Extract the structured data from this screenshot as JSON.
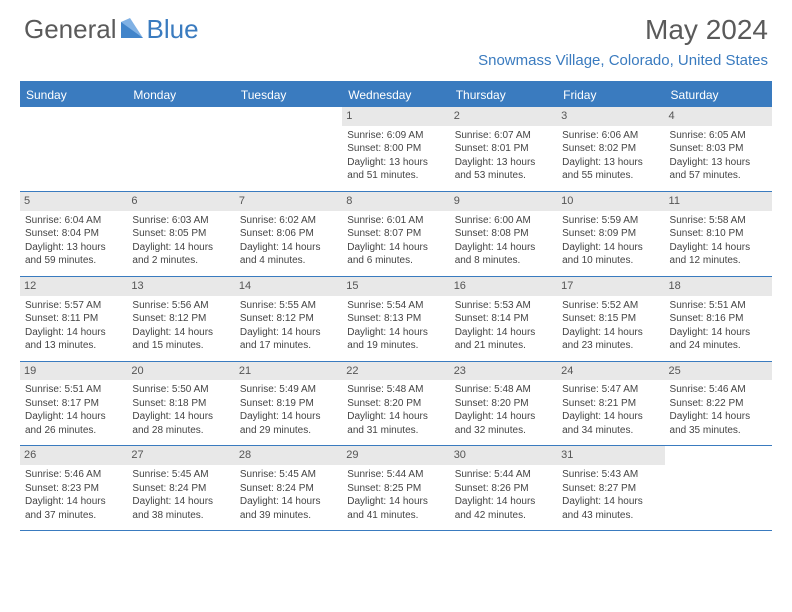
{
  "logo": {
    "text1": "General",
    "text2": "Blue"
  },
  "title": "May 2024",
  "location": "Snowmass Village, Colorado, United States",
  "colors": {
    "primary": "#3a7bbf",
    "header_text": "#5a5a5a",
    "daynum_bg": "#e8e8e8",
    "body_text": "#444444"
  },
  "weekdays": [
    "Sunday",
    "Monday",
    "Tuesday",
    "Wednesday",
    "Thursday",
    "Friday",
    "Saturday"
  ],
  "weeks": [
    [
      {
        "day": "",
        "sunrise": "",
        "sunset": "",
        "daylight": ""
      },
      {
        "day": "",
        "sunrise": "",
        "sunset": "",
        "daylight": ""
      },
      {
        "day": "",
        "sunrise": "",
        "sunset": "",
        "daylight": ""
      },
      {
        "day": "1",
        "sunrise": "Sunrise: 6:09 AM",
        "sunset": "Sunset: 8:00 PM",
        "daylight": "Daylight: 13 hours and 51 minutes."
      },
      {
        "day": "2",
        "sunrise": "Sunrise: 6:07 AM",
        "sunset": "Sunset: 8:01 PM",
        "daylight": "Daylight: 13 hours and 53 minutes."
      },
      {
        "day": "3",
        "sunrise": "Sunrise: 6:06 AM",
        "sunset": "Sunset: 8:02 PM",
        "daylight": "Daylight: 13 hours and 55 minutes."
      },
      {
        "day": "4",
        "sunrise": "Sunrise: 6:05 AM",
        "sunset": "Sunset: 8:03 PM",
        "daylight": "Daylight: 13 hours and 57 minutes."
      }
    ],
    [
      {
        "day": "5",
        "sunrise": "Sunrise: 6:04 AM",
        "sunset": "Sunset: 8:04 PM",
        "daylight": "Daylight: 13 hours and 59 minutes."
      },
      {
        "day": "6",
        "sunrise": "Sunrise: 6:03 AM",
        "sunset": "Sunset: 8:05 PM",
        "daylight": "Daylight: 14 hours and 2 minutes."
      },
      {
        "day": "7",
        "sunrise": "Sunrise: 6:02 AM",
        "sunset": "Sunset: 8:06 PM",
        "daylight": "Daylight: 14 hours and 4 minutes."
      },
      {
        "day": "8",
        "sunrise": "Sunrise: 6:01 AM",
        "sunset": "Sunset: 8:07 PM",
        "daylight": "Daylight: 14 hours and 6 minutes."
      },
      {
        "day": "9",
        "sunrise": "Sunrise: 6:00 AM",
        "sunset": "Sunset: 8:08 PM",
        "daylight": "Daylight: 14 hours and 8 minutes."
      },
      {
        "day": "10",
        "sunrise": "Sunrise: 5:59 AM",
        "sunset": "Sunset: 8:09 PM",
        "daylight": "Daylight: 14 hours and 10 minutes."
      },
      {
        "day": "11",
        "sunrise": "Sunrise: 5:58 AM",
        "sunset": "Sunset: 8:10 PM",
        "daylight": "Daylight: 14 hours and 12 minutes."
      }
    ],
    [
      {
        "day": "12",
        "sunrise": "Sunrise: 5:57 AM",
        "sunset": "Sunset: 8:11 PM",
        "daylight": "Daylight: 14 hours and 13 minutes."
      },
      {
        "day": "13",
        "sunrise": "Sunrise: 5:56 AM",
        "sunset": "Sunset: 8:12 PM",
        "daylight": "Daylight: 14 hours and 15 minutes."
      },
      {
        "day": "14",
        "sunrise": "Sunrise: 5:55 AM",
        "sunset": "Sunset: 8:12 PM",
        "daylight": "Daylight: 14 hours and 17 minutes."
      },
      {
        "day": "15",
        "sunrise": "Sunrise: 5:54 AM",
        "sunset": "Sunset: 8:13 PM",
        "daylight": "Daylight: 14 hours and 19 minutes."
      },
      {
        "day": "16",
        "sunrise": "Sunrise: 5:53 AM",
        "sunset": "Sunset: 8:14 PM",
        "daylight": "Daylight: 14 hours and 21 minutes."
      },
      {
        "day": "17",
        "sunrise": "Sunrise: 5:52 AM",
        "sunset": "Sunset: 8:15 PM",
        "daylight": "Daylight: 14 hours and 23 minutes."
      },
      {
        "day": "18",
        "sunrise": "Sunrise: 5:51 AM",
        "sunset": "Sunset: 8:16 PM",
        "daylight": "Daylight: 14 hours and 24 minutes."
      }
    ],
    [
      {
        "day": "19",
        "sunrise": "Sunrise: 5:51 AM",
        "sunset": "Sunset: 8:17 PM",
        "daylight": "Daylight: 14 hours and 26 minutes."
      },
      {
        "day": "20",
        "sunrise": "Sunrise: 5:50 AM",
        "sunset": "Sunset: 8:18 PM",
        "daylight": "Daylight: 14 hours and 28 minutes."
      },
      {
        "day": "21",
        "sunrise": "Sunrise: 5:49 AM",
        "sunset": "Sunset: 8:19 PM",
        "daylight": "Daylight: 14 hours and 29 minutes."
      },
      {
        "day": "22",
        "sunrise": "Sunrise: 5:48 AM",
        "sunset": "Sunset: 8:20 PM",
        "daylight": "Daylight: 14 hours and 31 minutes."
      },
      {
        "day": "23",
        "sunrise": "Sunrise: 5:48 AM",
        "sunset": "Sunset: 8:20 PM",
        "daylight": "Daylight: 14 hours and 32 minutes."
      },
      {
        "day": "24",
        "sunrise": "Sunrise: 5:47 AM",
        "sunset": "Sunset: 8:21 PM",
        "daylight": "Daylight: 14 hours and 34 minutes."
      },
      {
        "day": "25",
        "sunrise": "Sunrise: 5:46 AM",
        "sunset": "Sunset: 8:22 PM",
        "daylight": "Daylight: 14 hours and 35 minutes."
      }
    ],
    [
      {
        "day": "26",
        "sunrise": "Sunrise: 5:46 AM",
        "sunset": "Sunset: 8:23 PM",
        "daylight": "Daylight: 14 hours and 37 minutes."
      },
      {
        "day": "27",
        "sunrise": "Sunrise: 5:45 AM",
        "sunset": "Sunset: 8:24 PM",
        "daylight": "Daylight: 14 hours and 38 minutes."
      },
      {
        "day": "28",
        "sunrise": "Sunrise: 5:45 AM",
        "sunset": "Sunset: 8:24 PM",
        "daylight": "Daylight: 14 hours and 39 minutes."
      },
      {
        "day": "29",
        "sunrise": "Sunrise: 5:44 AM",
        "sunset": "Sunset: 8:25 PM",
        "daylight": "Daylight: 14 hours and 41 minutes."
      },
      {
        "day": "30",
        "sunrise": "Sunrise: 5:44 AM",
        "sunset": "Sunset: 8:26 PM",
        "daylight": "Daylight: 14 hours and 42 minutes."
      },
      {
        "day": "31",
        "sunrise": "Sunrise: 5:43 AM",
        "sunset": "Sunset: 8:27 PM",
        "daylight": "Daylight: 14 hours and 43 minutes."
      },
      {
        "day": "",
        "sunrise": "",
        "sunset": "",
        "daylight": ""
      }
    ]
  ]
}
